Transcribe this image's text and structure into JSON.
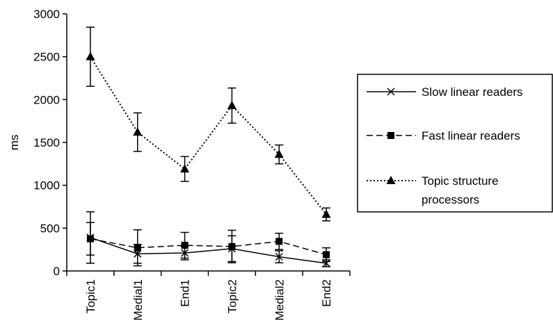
{
  "chart_data": {
    "type": "line",
    "title": "",
    "xlabel": "",
    "ylabel": "ms",
    "ylim": [
      0,
      3000
    ],
    "yticks": [
      0,
      500,
      1000,
      1500,
      2000,
      2500,
      3000
    ],
    "categories": [
      "Topic1",
      "Medial1",
      "End1",
      "Topic2",
      "Medial2",
      "End2"
    ],
    "legend_position": "right",
    "series": [
      {
        "name": "Slow linear readers",
        "style": "solid",
        "marker": "x",
        "color": "#000000",
        "values": [
          390,
          200,
          210,
          260,
          165,
          90
        ],
        "errors": [
          300,
          110,
          80,
          150,
          70,
          40
        ]
      },
      {
        "name": "Fast linear readers",
        "style": "dashed",
        "marker": "square",
        "color": "#000000",
        "values": [
          375,
          270,
          300,
          285,
          345,
          190
        ],
        "errors": [
          190,
          210,
          150,
          190,
          95,
          80
        ]
      },
      {
        "name": "Topic structure processors",
        "name_lines": [
          "Topic structure",
          "processors"
        ],
        "style": "dotted",
        "marker": "triangle",
        "color": "#000000",
        "values": [
          2500,
          1620,
          1190,
          1930,
          1360,
          660
        ],
        "errors": [
          345,
          225,
          145,
          205,
          110,
          75
        ]
      }
    ]
  }
}
